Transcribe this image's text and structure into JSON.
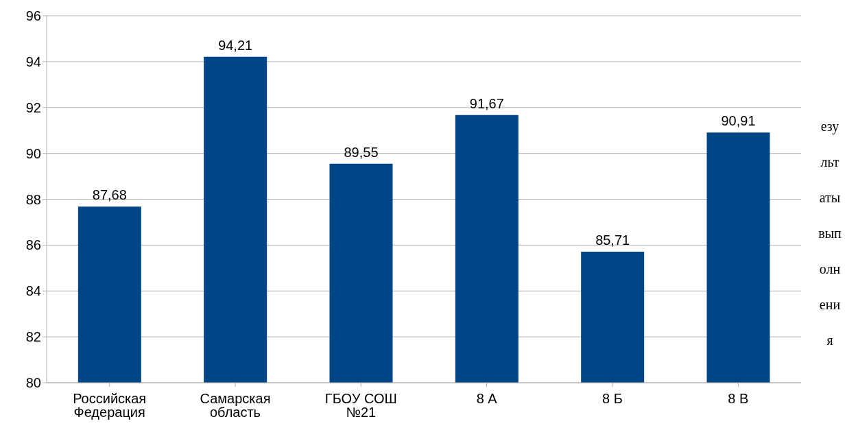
{
  "chart_data": {
    "type": "bar",
    "categories": [
      "Российская Федерация",
      "Самарская область",
      "ГБОУ СОШ №21",
      "8 А",
      "8 Б",
      "8 В"
    ],
    "values": [
      87.68,
      94.21,
      89.55,
      91.67,
      85.71,
      90.91
    ],
    "color": "#004586",
    "ylim": [
      80,
      96
    ],
    "yticks": [
      80,
      82,
      84,
      86,
      88,
      90,
      92,
      94,
      96
    ],
    "value_labels": [
      "87,68",
      "94,21",
      "89,55",
      "91,67",
      "85,71",
      "90,91"
    ],
    "grid": "y",
    "legend": false,
    "annotations": [
      "езу льт аты вып олн ени я"
    ]
  }
}
